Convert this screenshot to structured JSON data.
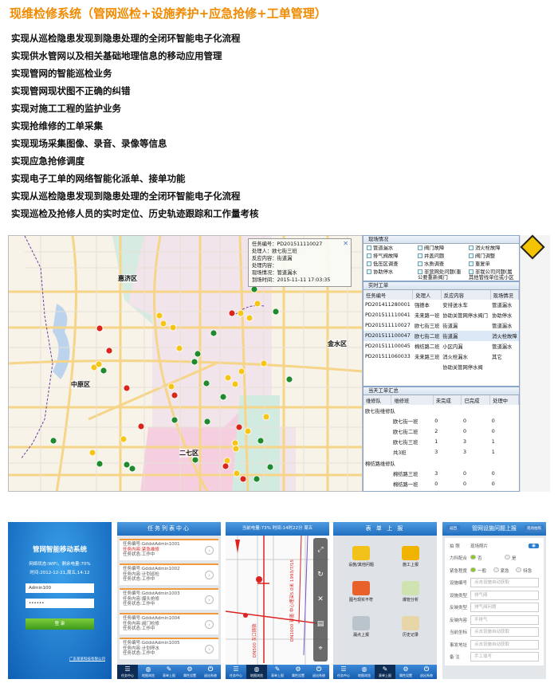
{
  "title": "现维检修系统（管网巡检+设施养护+应急抢修+工单管理）",
  "features": [
    "实现从巡检隐患发现到隐患处理的全闭环智能电子化流程",
    "实现供水管网以及相关基础地理信息的移动应用管理",
    "实现管网的智能巡检业务",
    "实现管网现状图不正确的纠错",
    "实现对施工工程的监护业务",
    "实现抢维修的工单采集",
    "实现现场采集图像、录音、录像等信息",
    "实现应急抢修调度",
    "实现电子工单的网络智能化派单、接单功能",
    "实现从巡检隐患发现到隐患处理的全闭环智能电子化流程",
    "实现巡检及抢修人员的实时定位、历史轨迹跟踪和工作量考核"
  ],
  "map": {
    "districts": [
      "惠济区",
      "金水区",
      "中原区",
      "二七区"
    ],
    "popup": [
      "任务编号：PD201511110027",
      "处理人：欧七街三班",
      "反应内容：街道漏",
      "处理内容：",
      "现场情况：管道漏水",
      "到场时间：2015-11-11 17:03:35"
    ],
    "marker_colors": {
      "red": "#d9261c",
      "yellow": "#f5c518",
      "green": "#1f8a2e"
    }
  },
  "site_panel": {
    "title": "现场情况",
    "options": [
      "管道漏水",
      "阀门故障",
      "消火栓故障",
      "排气阀故障",
      "井盖问题",
      "阀门调整",
      "低压区调查",
      "水质调查",
      "重复单",
      "协助停水",
      "非营网处问题(重公要重新阀门",
      "非我公司问题(属其他管线单位或小区内"
    ]
  },
  "work_orders": {
    "title": "实时工单",
    "columns": [
      "任务编号",
      "处理人",
      "反应内容",
      "现场情况"
    ],
    "rows": [
      [
        "PD201411280001",
        "强德本",
        "安排送水车",
        "管道漏水"
      ],
      [
        "PD201511110041",
        "未来路一班",
        "协助关管网停水阀门",
        "协助停水"
      ],
      [
        "PD201511110027",
        "欧七街三班",
        "街道漏",
        "管道漏水"
      ],
      [
        "PD201511100047",
        "欧七街二班",
        "街道漏",
        "消火栓故障"
      ],
      [
        "PD201511100045",
        "棉纺路二班",
        "小区内漏",
        "管道漏水"
      ],
      [
        "PD201511060033",
        "未来路三班",
        "消火栓漏水",
        "其它"
      ],
      [
        "",
        "",
        "协助关管网停水阀",
        ""
      ]
    ]
  },
  "summary": {
    "title": "当天工单汇总",
    "columns": [
      "维修队",
      "维修班",
      "未完成",
      "已完成",
      "处理中"
    ],
    "groups": [
      {
        "team": "欧七街维修队",
        "rows": [
          [
            "欧七街一班",
            "0",
            "0",
            "0"
          ],
          [
            "欧七街二班",
            "2",
            "0",
            "0"
          ],
          [
            "欧七街三班",
            "1",
            "3",
            "1"
          ],
          [
            "共3班",
            "3",
            "3",
            "1"
          ]
        ]
      },
      {
        "team": "棉纺路维修队",
        "rows": [
          [
            "棉纺路三班",
            "3",
            "0",
            "0"
          ],
          [
            "棉纺路一班",
            "0",
            "0",
            "0"
          ],
          [
            "棉纺路二班",
            "1",
            "2",
            "0"
          ],
          [
            "共3班",
            "4",
            "2",
            "0"
          ]
        ]
      }
    ]
  },
  "login": {
    "title": "管网智能移动系统",
    "status": "网络状态:WIFI，剩余电量:70%",
    "time": "时间:2012-12-21,周五,14:12",
    "username": "Admin100",
    "password": "••••••",
    "button": "登 录",
    "company": "广东某某科技有限公司"
  },
  "tabs": [
    "任务中心",
    "地图浏览",
    "表单上报",
    "属性设置",
    "退出系统"
  ],
  "task_list": {
    "title": "任务列表中心",
    "tasks": [
      [
        "任务编号:GddstAdmin1001",
        "任务内容:紧急维修",
        "任务状态:工作中"
      ],
      [
        "任务编号:GddstAdmin1002",
        "任务内容:计划巡检",
        "任务状态:工作中"
      ],
      [
        "任务编号:GddstAdmin1003",
        "任务内容:爆头抢修",
        "任务状态:工作中"
      ],
      [
        "任务编号:GddstAdmin1004",
        "任务内容:阀门检修",
        "任务状态:工作中"
      ],
      [
        "任务编号:GddstAdmin1005",
        "任务内容:计划停水",
        "任务状态:工作中"
      ]
    ]
  },
  "map_phone": {
    "status": "当前电量:73%  时间:14时22分  周五",
    "pipe1": "DN500 灰口铸铁",
    "pipe2": "DN1000 球墨 中心埋深5.0米 1993/7/15"
  },
  "form_report": {
    "title": "表 单 上 报",
    "tiles": [
      "设施/其他问题",
      "施工上报",
      "图与现实不符",
      "爆管分析",
      "漏点上报",
      "历史记录"
    ]
  },
  "facility_form": {
    "back": "返回",
    "title": "管网设施问题上报",
    "action": "现场拍照",
    "photo_label": "拍 照",
    "photo_hint": "现场照片",
    "fields": [
      {
        "label": "力科配合",
        "options": [
          "否",
          "是"
        ]
      },
      {
        "label": "紧急程度",
        "options": [
          "一般",
          "紧急",
          "特急"
        ]
      },
      {
        "label": "设施编号",
        "value": "点击设施自动获取"
      },
      {
        "label": "设施类型",
        "value": "排气阀"
      },
      {
        "label": "反映类型",
        "value": "排气阀问题"
      },
      {
        "label": "反映内容",
        "value": "不排气"
      },
      {
        "label": "当前坐标",
        "value": "点击设施自动获取"
      },
      {
        "label": "事发地址",
        "value": "点击设施自动获取"
      },
      {
        "label": "备 注",
        "value": "手工填写"
      }
    ]
  }
}
